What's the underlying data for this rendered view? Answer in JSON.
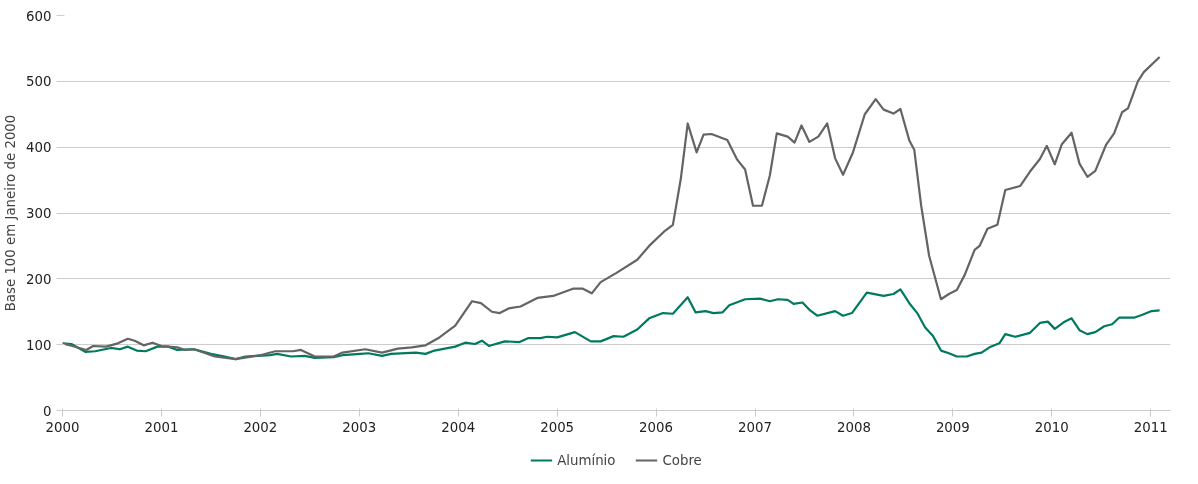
{
  "chart_data": {
    "type": "line",
    "ylabel": "Base 100 em Janeiro de 2000",
    "xlim": [
      2000,
      2011.2
    ],
    "xticks": [
      2000,
      2001,
      2002,
      2003,
      2004,
      2005,
      2006,
      2007,
      2008,
      2009,
      2010,
      2011
    ],
    "ylim": [
      0,
      600
    ],
    "yticks": [
      0,
      100,
      200,
      300,
      400,
      500,
      600
    ],
    "grid": "y",
    "legend": "bottom",
    "marker": "none",
    "line_style": "solid",
    "series": [
      {
        "name": "Alumínio",
        "color": "#007a5e",
        "x": [
          2000.0,
          2000.09,
          2000.23,
          2000.33,
          2000.49,
          2000.58,
          2000.66,
          2000.75,
          2000.84,
          2000.96,
          2001.07,
          2001.16,
          2001.33,
          2001.5,
          2001.64,
          2001.75,
          2001.85,
          2002.1,
          2002.17,
          2002.31,
          2002.45,
          2002.55,
          2002.74,
          2002.83,
          2003.01,
          2003.09,
          2003.23,
          2003.32,
          2003.57,
          2003.67,
          2003.76,
          2003.97,
          2004.07,
          2004.17,
          2004.24,
          2004.31,
          2004.47,
          2004.62,
          2004.71,
          2004.83,
          2004.9,
          2005.0,
          2005.18,
          2005.34,
          2005.44,
          2005.57,
          2005.67,
          2005.81,
          2005.93,
          2006.07,
          2006.17,
          2006.32,
          2006.4,
          2006.5,
          2006.58,
          2006.67,
          2006.74,
          2006.9,
          2007.05,
          2007.15,
          2007.23,
          2007.33,
          2007.39,
          2007.48,
          2007.55,
          2007.63,
          2007.81,
          2007.89,
          2007.98,
          2008.13,
          2008.3,
          2008.4,
          2008.47,
          2008.56,
          2008.64,
          2008.72,
          2008.8,
          2008.88,
          2008.96,
          2009.04,
          2009.14,
          2009.22,
          2009.29,
          2009.37,
          2009.47,
          2009.53,
          2009.63,
          2009.78,
          2009.88,
          2009.96,
          2010.03,
          2010.12,
          2010.2,
          2010.28,
          2010.36,
          2010.44,
          2010.53,
          2010.61,
          2010.68,
          2010.83,
          2010.91,
          2011.01,
          2011.09
        ],
        "values": [
          102,
          101,
          89,
          90,
          95,
          93,
          97,
          91,
          90,
          97,
          97,
          92,
          93,
          86,
          82,
          78,
          82,
          84,
          86,
          82,
          83,
          80,
          81,
          84,
          86,
          87,
          83,
          86,
          88,
          86,
          91,
          97,
          103,
          101,
          106,
          98,
          105,
          104,
          110,
          110,
          112,
          111,
          119,
          105,
          105,
          113,
          112,
          123,
          140,
          148,
          147,
          172,
          149,
          151,
          148,
          149,
          160,
          169,
          170,
          166,
          169,
          168,
          162,
          164,
          153,
          144,
          151,
          144,
          148,
          179,
          174,
          177,
          184,
          163,
          148,
          126,
          113,
          91,
          87,
          82,
          82,
          86,
          88,
          96,
          102,
          116,
          112,
          118,
          133,
          135,
          124,
          134,
          140,
          122,
          116,
          119,
          128,
          131,
          141,
          141,
          145,
          151,
          152
        ]
      },
      {
        "name": "Cobre",
        "color": "#646464",
        "x": [
          2000.0,
          2000.1,
          2000.24,
          2000.31,
          2000.44,
          2000.56,
          2000.66,
          2000.73,
          2000.82,
          2000.91,
          2001.0,
          2001.16,
          2001.24,
          2001.33,
          2001.54,
          2001.75,
          2002.0,
          2002.15,
          2002.33,
          2002.41,
          2002.55,
          2002.74,
          2002.83,
          2003.06,
          2003.23,
          2003.39,
          2003.53,
          2003.67,
          2003.81,
          2003.97,
          2004.14,
          2004.23,
          2004.34,
          2004.42,
          2004.51,
          2004.63,
          2004.8,
          2004.96,
          2005.16,
          2005.26,
          2005.35,
          2005.44,
          2005.6,
          2005.81,
          2005.93,
          2006.09,
          2006.17,
          2006.25,
          2006.32,
          2006.41,
          2006.48,
          2006.56,
          2006.72,
          2006.82,
          2006.9,
          2006.98,
          2007.07,
          2007.15,
          2007.22,
          2007.33,
          2007.4,
          2007.47,
          2007.55,
          2007.64,
          2007.73,
          2007.81,
          2007.89,
          2007.99,
          2008.11,
          2008.22,
          2008.3,
          2008.4,
          2008.47,
          2008.56,
          2008.61,
          2008.68,
          2008.76,
          2008.88,
          2008.96,
          2009.04,
          2009.12,
          2009.22,
          2009.27,
          2009.35,
          2009.45,
          2009.53,
          2009.68,
          2009.78,
          2009.88,
          2009.95,
          2010.03,
          2010.1,
          2010.2,
          2010.28,
          2010.36,
          2010.44,
          2010.55,
          2010.63,
          2010.71,
          2010.77,
          2010.87,
          2010.93,
          2011.09
        ],
        "values": [
          102,
          98,
          92,
          98,
          97,
          102,
          109,
          106,
          99,
          103,
          98,
          96,
          92,
          93,
          82,
          78,
          84,
          90,
          90,
          92,
          82,
          82,
          88,
          93,
          88,
          94,
          96,
          99,
          111,
          129,
          166,
          163,
          150,
          148,
          155,
          158,
          171,
          174,
          185,
          185,
          178,
          195,
          209,
          229,
          250,
          273,
          282,
          352,
          436,
          392,
          419,
          420,
          411,
          381,
          366,
          311,
          311,
          357,
          421,
          416,
          407,
          433,
          408,
          416,
          436,
          383,
          358,
          392,
          450,
          473,
          457,
          451,
          458,
          410,
          396,
          311,
          235,
          169,
          177,
          183,
          206,
          244,
          250,
          276,
          282,
          335,
          341,
          363,
          382,
          402,
          374,
          404,
          422,
          375,
          355,
          364,
          404,
          421,
          453,
          459,
          500,
          514,
          537
        ]
      }
    ]
  }
}
